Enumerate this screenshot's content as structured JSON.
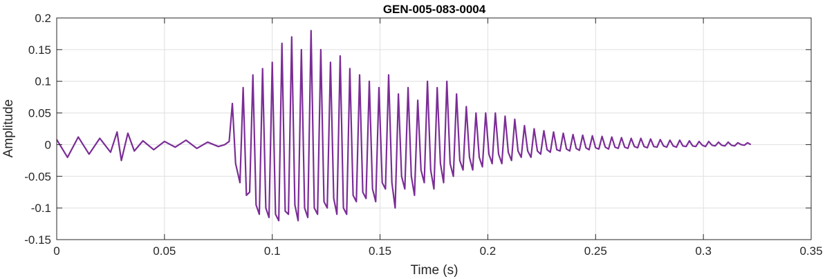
{
  "chart_data": {
    "type": "line",
    "title": "GEN-005-083-0004",
    "xlabel": "Time (s)",
    "ylabel": "Amplitude",
    "xlim": [
      0,
      0.35
    ],
    "ylim": [
      -0.15,
      0.2
    ],
    "xticks": [
      0,
      0.05,
      0.1,
      0.15,
      0.2,
      0.25,
      0.3,
      0.35
    ],
    "xtick_labels": [
      "0",
      "0.05",
      "0.1",
      "0.15",
      "0.2",
      "0.25",
      "0.3",
      "0.35"
    ],
    "yticks": [
      -0.15,
      -0.1,
      -0.05,
      0,
      0.05,
      0.1,
      0.15,
      0.2
    ],
    "ytick_labels": [
      "-0.15",
      "-0.1",
      "-0.05",
      "0",
      "0.05",
      "0.1",
      "0.15",
      "0.2"
    ],
    "grid": true,
    "series": [
      {
        "color": "#7b2d96",
        "x": [
          0,
          0.005,
          0.01,
          0.015,
          0.02,
          0.025,
          0.028,
          0.03,
          0.033,
          0.036,
          0.04,
          0.045,
          0.05,
          0.055,
          0.06,
          0.065,
          0.07,
          0.075,
          0.078,
          0.08,
          0.0815,
          0.083,
          0.085,
          0.0865,
          0.088,
          0.0895,
          0.091,
          0.0925,
          0.094,
          0.0955,
          0.097,
          0.0985,
          0.1,
          0.1015,
          0.103,
          0.1045,
          0.106,
          0.1075,
          0.109,
          0.1105,
          0.112,
          0.1135,
          0.115,
          0.1165,
          0.118,
          0.1195,
          0.121,
          0.1225,
          0.124,
          0.1255,
          0.127,
          0.1285,
          0.13,
          0.1315,
          0.133,
          0.1345,
          0.136,
          0.1375,
          0.139,
          0.1405,
          0.142,
          0.1435,
          0.145,
          0.1465,
          0.148,
          0.1495,
          0.151,
          0.1525,
          0.154,
          0.1555,
          0.157,
          0.1585,
          0.16,
          0.1615,
          0.163,
          0.1645,
          0.166,
          0.1675,
          0.169,
          0.1705,
          0.172,
          0.1735,
          0.175,
          0.1765,
          0.178,
          0.1795,
          0.181,
          0.1825,
          0.184,
          0.1855,
          0.187,
          0.1885,
          0.19,
          0.1915,
          0.193,
          0.1945,
          0.196,
          0.1975,
          0.199,
          0.2005,
          0.202,
          0.2035,
          0.205,
          0.2065,
          0.208,
          0.2095,
          0.211,
          0.2125,
          0.214,
          0.2155,
          0.217,
          0.2185,
          0.22,
          0.2215,
          0.223,
          0.2245,
          0.226,
          0.2275,
          0.229,
          0.2305,
          0.232,
          0.2335,
          0.235,
          0.2365,
          0.238,
          0.2395,
          0.241,
          0.2425,
          0.244,
          0.2455,
          0.247,
          0.2485,
          0.25,
          0.2515,
          0.253,
          0.2545,
          0.256,
          0.2575,
          0.259,
          0.2605,
          0.262,
          0.2635,
          0.265,
          0.2665,
          0.268,
          0.2695,
          0.271,
          0.2725,
          0.274,
          0.2755,
          0.277,
          0.2785,
          0.28,
          0.2815,
          0.283,
          0.2845,
          0.286,
          0.2875,
          0.289,
          0.2905,
          0.292,
          0.2935,
          0.295,
          0.2965,
          0.298,
          0.2995,
          0.301,
          0.3025,
          0.304,
          0.3055,
          0.307,
          0.3085,
          0.31,
          0.3115,
          0.313,
          0.3145,
          0.316,
          0.3175,
          0.319,
          0.3205,
          0.322
        ],
        "y": [
          0.008,
          -0.02,
          0.012,
          -0.015,
          0.01,
          -0.012,
          0.02,
          -0.025,
          0.018,
          -0.01,
          0.006,
          -0.008,
          0.005,
          -0.004,
          0.007,
          -0.006,
          0.004,
          -0.003,
          0.0,
          0.005,
          0.065,
          -0.03,
          -0.06,
          0.09,
          -0.08,
          -0.075,
          0.11,
          -0.095,
          -0.11,
          0.12,
          -0.1,
          -0.115,
          0.13,
          -0.11,
          -0.12,
          0.16,
          -0.105,
          -0.11,
          0.17,
          -0.095,
          -0.12,
          0.15,
          -0.1,
          -0.115,
          0.18,
          -0.1,
          -0.11,
          0.15,
          -0.09,
          -0.1,
          0.13,
          -0.085,
          -0.11,
          0.14,
          -0.1,
          -0.11,
          0.12,
          -0.08,
          -0.09,
          0.11,
          -0.075,
          -0.085,
          0.1,
          -0.07,
          -0.09,
          0.09,
          -0.06,
          -0.07,
          0.11,
          -0.06,
          -0.1,
          0.08,
          -0.05,
          -0.07,
          0.09,
          -0.05,
          -0.08,
          0.07,
          -0.04,
          -0.06,
          0.1,
          -0.04,
          -0.07,
          0.09,
          -0.03,
          -0.06,
          0.1,
          -0.03,
          -0.05,
          0.08,
          -0.025,
          -0.04,
          0.06,
          -0.02,
          -0.04,
          0.05,
          -0.02,
          -0.035,
          0.05,
          -0.015,
          -0.03,
          0.05,
          -0.015,
          -0.03,
          0.045,
          -0.012,
          -0.025,
          0.04,
          -0.01,
          -0.02,
          0.03,
          -0.01,
          -0.02,
          0.025,
          -0.01,
          -0.015,
          0.022,
          -0.008,
          -0.012,
          0.02,
          -0.008,
          -0.01,
          0.018,
          -0.007,
          -0.01,
          0.016,
          -0.006,
          -0.009,
          0.015,
          -0.005,
          -0.008,
          0.014,
          -0.005,
          -0.007,
          0.013,
          -0.004,
          -0.007,
          0.012,
          -0.004,
          -0.006,
          0.011,
          -0.004,
          -0.006,
          0.01,
          -0.003,
          -0.005,
          0.01,
          -0.003,
          -0.005,
          0.009,
          -0.003,
          -0.004,
          0.008,
          -0.002,
          -0.004,
          0.007,
          -0.002,
          -0.004,
          0.007,
          -0.002,
          -0.003,
          0.006,
          -0.002,
          -0.003,
          0.005,
          -0.001,
          -0.003,
          0.005,
          -0.001,
          -0.002,
          0.004,
          -0.001,
          -0.002,
          0.004,
          -0.001,
          -0.002,
          0.003,
          0.0,
          -0.001,
          0.003,
          0.0
        ]
      }
    ]
  }
}
